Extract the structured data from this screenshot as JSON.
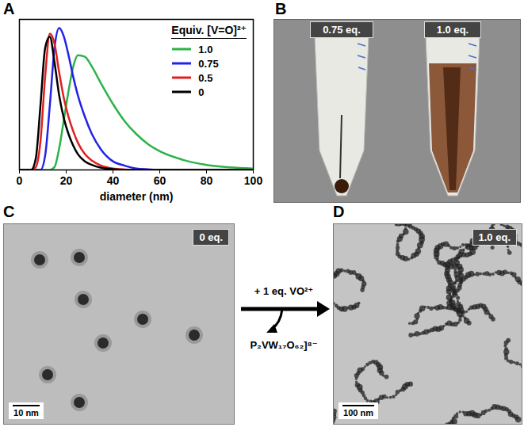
{
  "chart_data": {
    "type": "line",
    "panel_label": "A",
    "x_label": "diameter (nm)",
    "legend_title": "Equiv. [V=O]²⁺",
    "x": [
      0,
      5,
      7,
      9,
      11,
      13,
      15,
      17,
      19,
      21,
      23,
      25,
      28,
      31,
      35,
      40,
      45,
      50,
      55,
      60,
      70,
      80,
      90,
      100
    ],
    "series": [
      {
        "name": "1.0",
        "color": "#2db34a",
        "values": [
          0,
          0,
          0,
          0,
          0,
          0,
          0.02,
          0.15,
          0.35,
          0.55,
          0.72,
          0.8,
          0.79,
          0.72,
          0.6,
          0.46,
          0.34,
          0.25,
          0.18,
          0.13,
          0.07,
          0.035,
          0.018,
          0.01
        ]
      },
      {
        "name": "0.75",
        "color": "#2323e6",
        "values": [
          0,
          0,
          0,
          0,
          0.1,
          0.45,
          0.85,
          0.99,
          0.93,
          0.8,
          0.65,
          0.52,
          0.37,
          0.25,
          0.14,
          0.06,
          0.03,
          0.01,
          0.004,
          0,
          0,
          0,
          0,
          0
        ]
      },
      {
        "name": "0.5",
        "color": "#e02020",
        "values": [
          0,
          0,
          0.02,
          0.2,
          0.65,
          0.95,
          0.88,
          0.68,
          0.5,
          0.37,
          0.27,
          0.19,
          0.11,
          0.065,
          0.03,
          0.01,
          0.003,
          0,
          0,
          0,
          0,
          0,
          0,
          0
        ]
      },
      {
        "name": "0",
        "color": "#000000",
        "values": [
          0,
          0,
          0.08,
          0.45,
          0.85,
          0.93,
          0.75,
          0.52,
          0.36,
          0.25,
          0.17,
          0.11,
          0.06,
          0.035,
          0.015,
          0.005,
          0,
          0,
          0,
          0,
          0,
          0,
          0,
          0
        ]
      }
    ],
    "xlim": [
      0,
      100
    ],
    "xticks": [
      0,
      20,
      40,
      60,
      80,
      100
    ],
    "ylim": [
      0,
      1.05
    ],
    "tick_labels": "x",
    "grid": false,
    "legend": "top-right"
  },
  "panels": [
    {
      "label": "B",
      "tubes": [
        "0.75 eq.",
        "1.0 eq."
      ]
    },
    {
      "label": "C",
      "tag": "0 eq.",
      "scale_bar": "10 nm"
    },
    {
      "label": "D",
      "tag": "1.0 eq.",
      "scale_bar": "100 nm"
    }
  ],
  "arrow": {
    "above": "+ 1 eq. VO²⁺",
    "below": "P₂VW₁₇O₆₂]⁸⁻"
  }
}
